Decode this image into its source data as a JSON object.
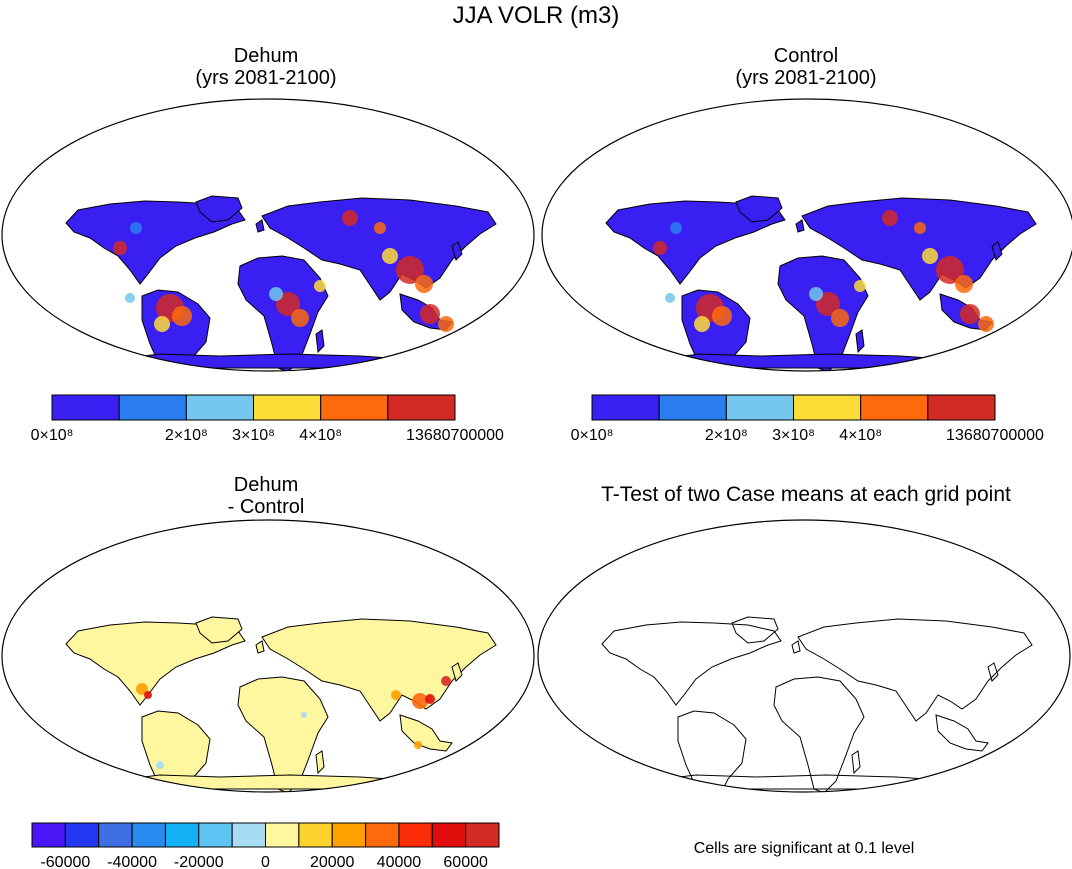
{
  "figure_title": "JJA VOLR (m3)",
  "colors": {
    "land_low": "#3a1ff2",
    "ocean": "#ffffff",
    "diff_land": "#fff6a0",
    "frame": "#000000"
  },
  "panels": [
    {
      "id": "dehum",
      "title_line1": "Dehum",
      "title_line2": "(yrs 2081-2100)",
      "kind": "absolute"
    },
    {
      "id": "control",
      "title_line1": "Control",
      "title_line2": "(yrs 2081-2100)",
      "kind": "absolute"
    },
    {
      "id": "diff",
      "title_line1": "Dehum",
      "title_line2": "- Control",
      "kind": "difference"
    },
    {
      "id": "ttest",
      "title_line1": "T-Test of two Case means at each grid point",
      "title_line2": "",
      "kind": "ttest"
    }
  ],
  "ttest_note": "Cells are significant at 0.1 level",
  "chart_data": [
    {
      "type": "heatmap",
      "title": "Dehum (yrs 2081-2100)",
      "colorbar": {
        "colors": [
          "#3a1ff2",
          "#2a7ef0",
          "#74c6ef",
          "#fedc38",
          "#fd6a0d",
          "#d42a26"
        ],
        "tick_labels": [
          "0×10⁸",
          "2×10⁸",
          "3×10⁸",
          "4×10⁸",
          "13680700000"
        ],
        "tick_boundaries": [
          0,
          2,
          3,
          4,
          6
        ]
      }
    },
    {
      "type": "heatmap",
      "title": "Control (yrs 2081-2100)",
      "colorbar": {
        "colors": [
          "#3a1ff2",
          "#2a7ef0",
          "#74c6ef",
          "#fedc38",
          "#fd6a0d",
          "#d42a26"
        ],
        "tick_labels": [
          "0×10⁸",
          "2×10⁸",
          "3×10⁸",
          "4×10⁸",
          "13680700000"
        ],
        "tick_boundaries": [
          0,
          2,
          3,
          4,
          6
        ]
      }
    },
    {
      "type": "heatmap",
      "title": "Dehum - Control",
      "colorbar": {
        "colors": [
          "#4a16f7",
          "#2437f0",
          "#3f6fe3",
          "#2a8bf0",
          "#12b1f5",
          "#5cc4f2",
          "#a8dcf3",
          "#fff6a0",
          "#fed330",
          "#fda000",
          "#fd6a0d",
          "#fc2d06",
          "#e00d0d",
          "#d42a26"
        ],
        "tick_labels": [
          "-60000",
          "-40000",
          "-20000",
          "0",
          "20000",
          "40000",
          "60000"
        ],
        "tick_boundaries": [
          1,
          3,
          5,
          7,
          9,
          11,
          13
        ]
      }
    },
    {
      "type": "heatmap",
      "title": "T-Test of two Case means at each grid point",
      "note": "Cells are significant at 0.1 level"
    }
  ]
}
